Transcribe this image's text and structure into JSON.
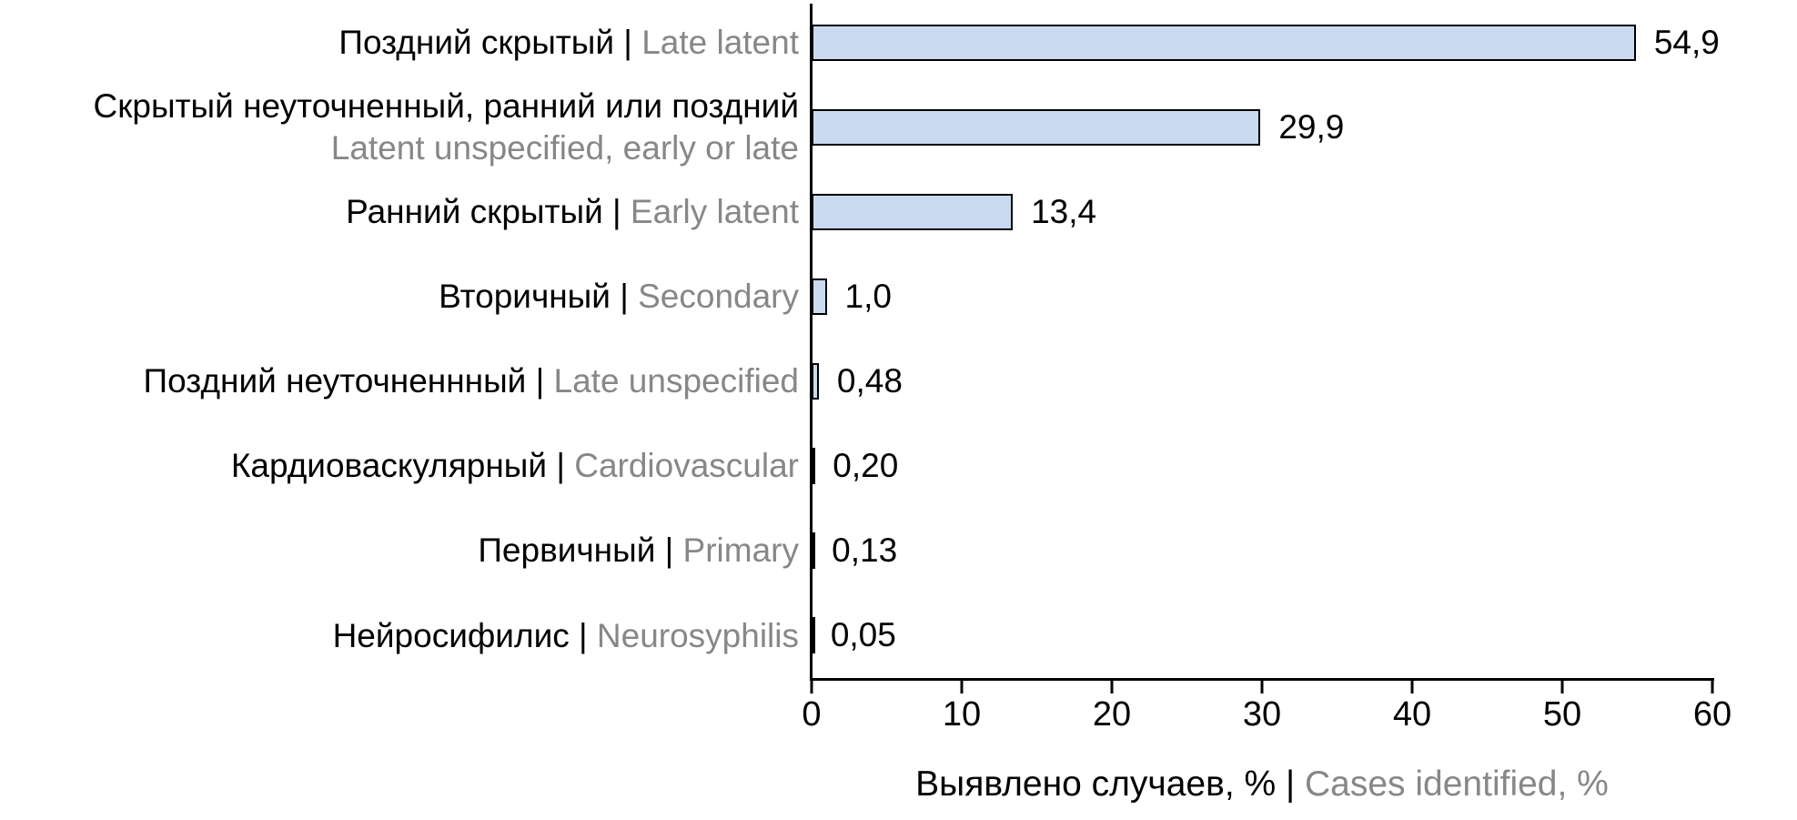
{
  "chart_data": {
    "type": "bar",
    "orientation": "horizontal",
    "title": "",
    "xlabel_ru": "Выявлено случаев, %",
    "xlabel_en": "Cases identified, %",
    "label_separator": " | ",
    "xlim": [
      0,
      60
    ],
    "x_ticks": [
      "0",
      "10",
      "20",
      "30",
      "40",
      "50",
      "60"
    ],
    "grid": false,
    "legend": false,
    "categories": [
      {
        "label_ru": "Поздний скрытый",
        "label_en": "Late latent",
        "two_line": false,
        "value": 54.9,
        "value_label": "54,9"
      },
      {
        "label_ru": "Скрытый неуточненный, ранний или поздний",
        "label_en": "Latent unspecified, early or late",
        "two_line": true,
        "value": 29.9,
        "value_label": "29,9"
      },
      {
        "label_ru": "Ранний скрытый",
        "label_en": "Early latent",
        "two_line": false,
        "value": 13.4,
        "value_label": "13,4"
      },
      {
        "label_ru": "Вторичный",
        "label_en": "Secondary",
        "two_line": false,
        "value": 1.0,
        "value_label": "1,0"
      },
      {
        "label_ru": "Поздний неуточненнный",
        "label_en": "Late unspecified",
        "two_line": false,
        "value": 0.48,
        "value_label": "0,48"
      },
      {
        "label_ru": "Кардиоваскулярный",
        "label_en": "Cardiovascular",
        "two_line": false,
        "value": 0.2,
        "value_label": "0,20"
      },
      {
        "label_ru": "Первичный",
        "label_en": "Primary",
        "two_line": false,
        "value": 0.13,
        "value_label": "0,13"
      },
      {
        "label_ru": "Нейросифилис",
        "label_en": "Neurosyphilis",
        "two_line": false,
        "value": 0.05,
        "value_label": "0,05"
      }
    ],
    "colors": {
      "bar_fill": "#c9d9ef",
      "bar_border": "#000000",
      "axis": "#000000",
      "text_primary": "#000000",
      "text_secondary": "#878787",
      "background": "#ffffff"
    }
  }
}
